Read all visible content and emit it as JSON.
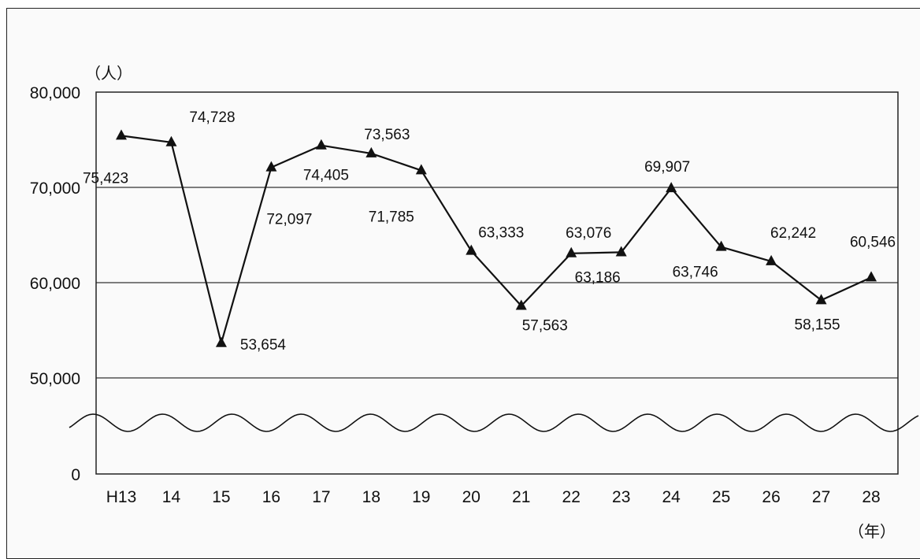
{
  "chart_data": {
    "type": "line",
    "y_unit_label": "（人）",
    "x_unit_label": "（年）",
    "categories": [
      "H13",
      "14",
      "15",
      "16",
      "17",
      "18",
      "19",
      "20",
      "21",
      "22",
      "23",
      "24",
      "25",
      "26",
      "27",
      "28"
    ],
    "series": [
      {
        "values": [
          75423,
          74728,
          53654,
          72097,
          74405,
          73563,
          71785,
          63333,
          57563,
          63076,
          63186,
          69907,
          63746,
          62242,
          58155,
          60546
        ]
      }
    ],
    "data_labels": [
      "75,423",
      "74,728",
      "53,654",
      "72,097",
      "74,405",
      "73,563",
      "71,785",
      "63,333",
      "57,563",
      "63,076",
      "63,186",
      "69,907",
      "63,746",
      "62,242",
      "58,155",
      "60,546"
    ],
    "y_ticks": [
      "0",
      "50,000",
      "60,000",
      "70,000",
      "80,000"
    ],
    "ylim": [
      0,
      80000
    ],
    "axis_break": "wavy line between 0 and 50,000",
    "grid": "horizontal at 50,000, 60,000, 70,000",
    "marker": "triangle",
    "colors": {
      "line": "#111111",
      "grid": "#333333",
      "background": "#fafafa"
    }
  }
}
